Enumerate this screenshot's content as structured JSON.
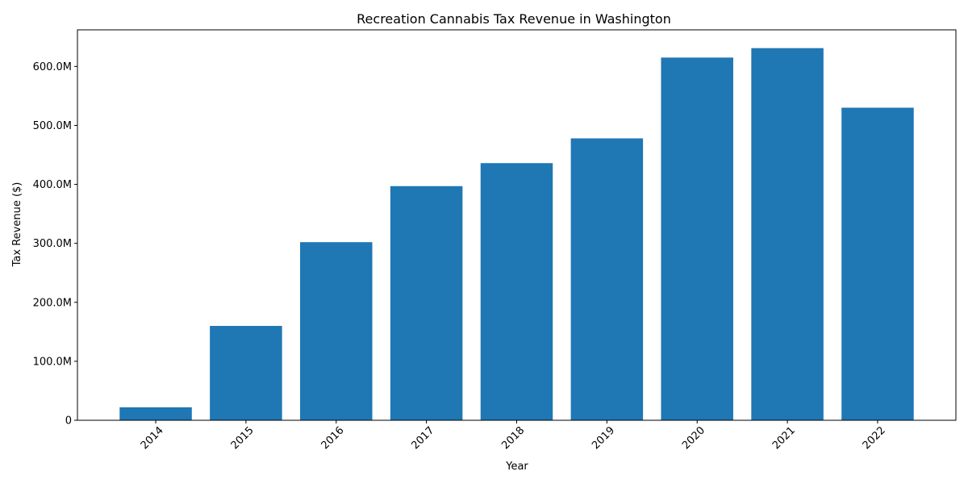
{
  "chart_data": {
    "type": "bar",
    "title": "Recreation Cannabis Tax Revenue in Washington",
    "xlabel": "Year",
    "ylabel": "Tax Revenue ($)",
    "categories": [
      "2014",
      "2015",
      "2016",
      "2017",
      "2018",
      "2019",
      "2020",
      "2021",
      "2022"
    ],
    "values": [
      22000000,
      160000000,
      302000000,
      397000000,
      436000000,
      478000000,
      615000000,
      631000000,
      530000000
    ],
    "ylim": [
      0,
      662000000
    ],
    "yticks": [
      0,
      100000000,
      200000000,
      300000000,
      400000000,
      500000000,
      600000000
    ],
    "ytick_labels": [
      "0",
      "100.0M",
      "200.0M",
      "300.0M",
      "400.0M",
      "500.0M",
      "600.0M"
    ],
    "grid": false,
    "legend": "none",
    "colors": {
      "bar": "#1f77b4",
      "axis": "#000000"
    }
  }
}
